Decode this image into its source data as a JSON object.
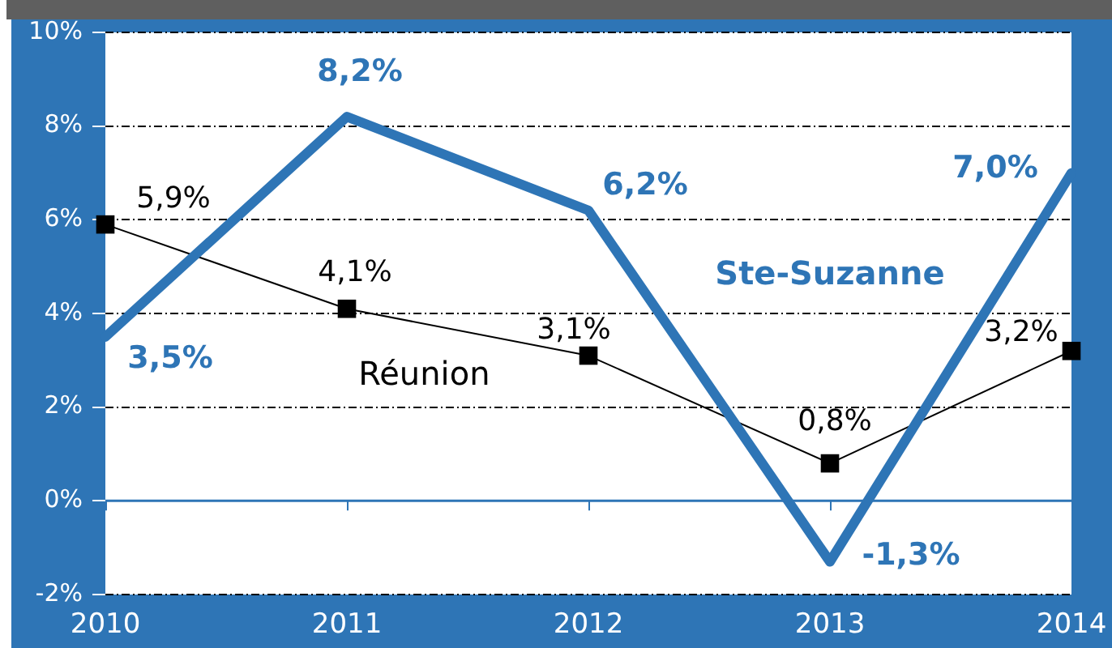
{
  "chart_data": {
    "type": "line",
    "categories": [
      "2010",
      "2011",
      "2012",
      "2013",
      "2014"
    ],
    "series": [
      {
        "name": "Ste-Suzanne",
        "color": "#2e75b6",
        "marker": "none",
        "values": [
          3.5,
          8.2,
          6.2,
          -1.3,
          7.0
        ],
        "value_labels": [
          "3,5%",
          "8,2%",
          "6,2%",
          "-1,3%",
          "7,0%"
        ]
      },
      {
        "name": "Réunion",
        "color": "#000000",
        "marker": "square",
        "values": [
          5.9,
          4.1,
          3.1,
          0.8,
          3.2
        ],
        "value_labels": [
          "5,9%",
          "4,1%",
          "3,1%",
          "0,8%",
          "3,2%"
        ]
      }
    ],
    "ylim": [
      -2,
      10
    ],
    "yticks": [
      {
        "value": -2,
        "label": "-2%"
      },
      {
        "value": 0,
        "label": "0%"
      },
      {
        "value": 2,
        "label": "2%"
      },
      {
        "value": 4,
        "label": "4%"
      },
      {
        "value": 6,
        "label": "6%"
      },
      {
        "value": 8,
        "label": "8%"
      },
      {
        "value": 10,
        "label": "10%"
      }
    ],
    "ref_lines": [
      {
        "axis": "y",
        "value": 0,
        "color": "#2e75b6"
      }
    ],
    "grid": "y",
    "legend": false,
    "line_style": "solid"
  }
}
